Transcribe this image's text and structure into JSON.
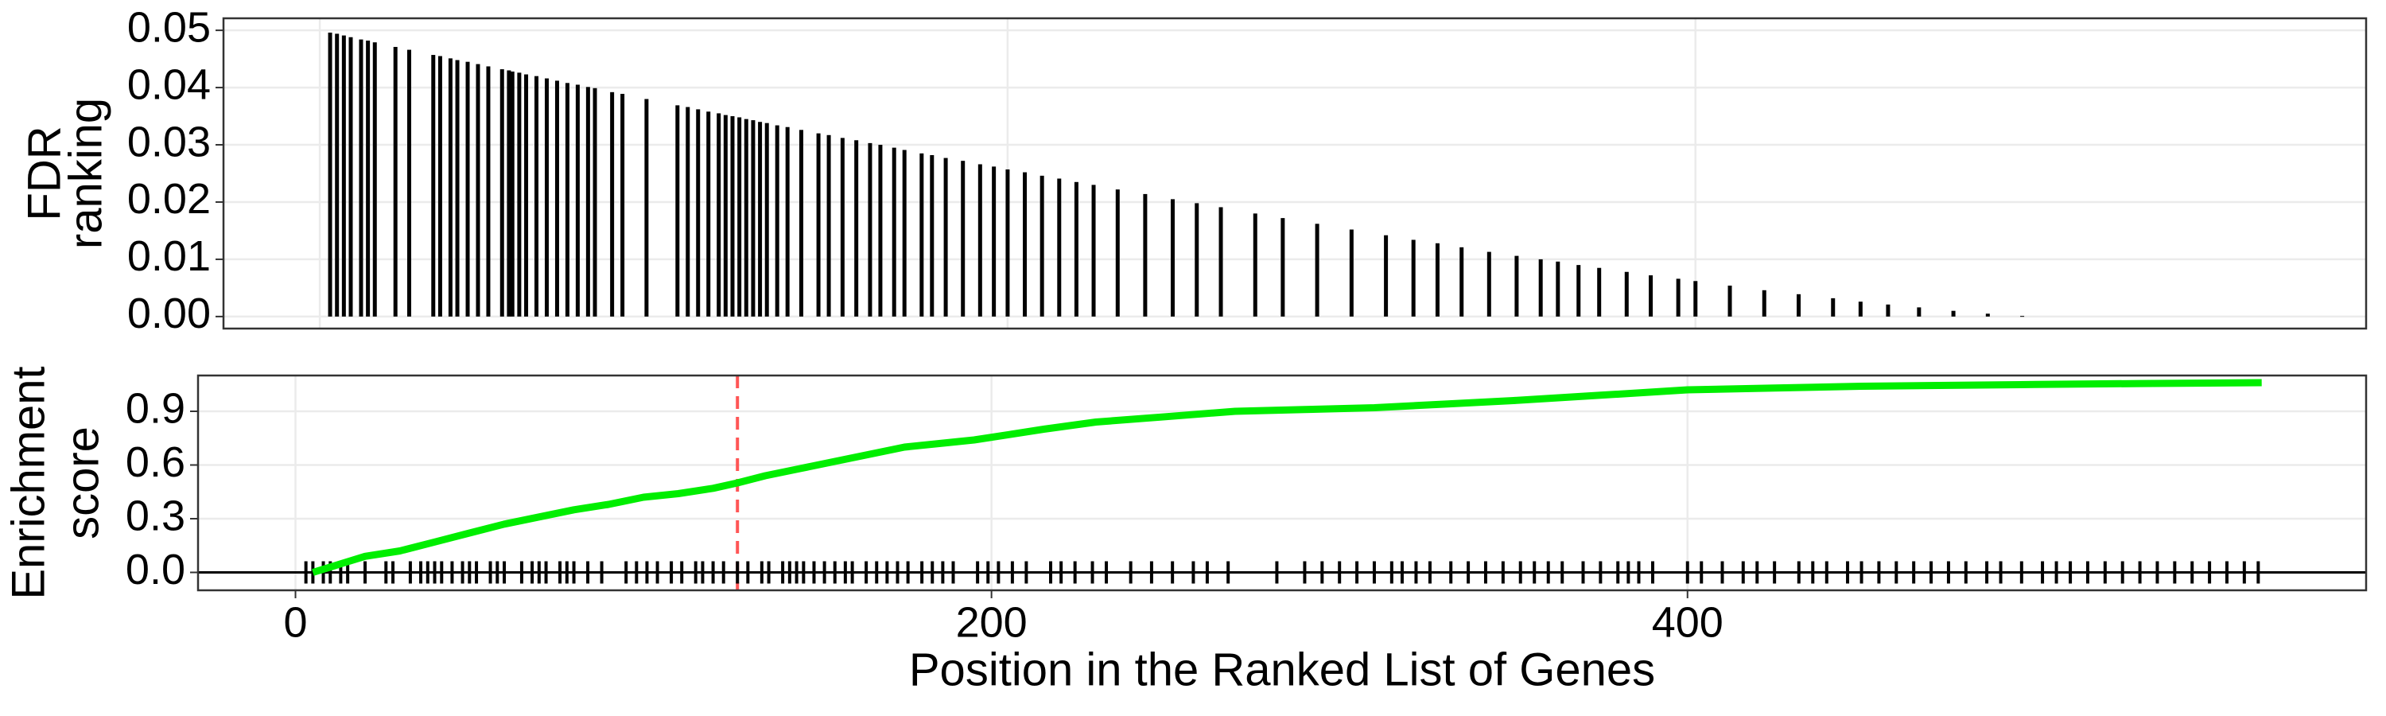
{
  "chart_data": [
    {
      "type": "bar",
      "ylabel": [
        "FDR",
        "ranking"
      ],
      "color": "#000000",
      "x": [
        3,
        5,
        7,
        9,
        12,
        14,
        16,
        22,
        26,
        33,
        35,
        38,
        40,
        43,
        46,
        49,
        53,
        55,
        56,
        58,
        60,
        63,
        66,
        69,
        72,
        75,
        78,
        80,
        85,
        88,
        95,
        104,
        107,
        110,
        113,
        116,
        118,
        120,
        122,
        124,
        126,
        128,
        130,
        133,
        136,
        140,
        145,
        148,
        152,
        156,
        160,
        163,
        167,
        170,
        175,
        178,
        182,
        187,
        192,
        196,
        200,
        205,
        210,
        215,
        220,
        225,
        232,
        240,
        248,
        255,
        262,
        272,
        280,
        290,
        300,
        310,
        318,
        325,
        332,
        340,
        348,
        355,
        360,
        366,
        372,
        380,
        387,
        395,
        400,
        410,
        420,
        430,
        440,
        448,
        456,
        465,
        475,
        485,
        495
      ],
      "values": [
        0.0496,
        0.0494,
        0.0491,
        0.0488,
        0.0484,
        0.0482,
        0.0479,
        0.0471,
        0.0466,
        0.0457,
        0.0455,
        0.0451,
        0.0448,
        0.0445,
        0.0441,
        0.0437,
        0.0432,
        0.043,
        0.0428,
        0.0426,
        0.0423,
        0.042,
        0.0416,
        0.0412,
        0.0408,
        0.0405,
        0.0401,
        0.0399,
        0.0392,
        0.0389,
        0.038,
        0.0369,
        0.0366,
        0.0362,
        0.0358,
        0.0355,
        0.0352,
        0.035,
        0.0348,
        0.0345,
        0.0343,
        0.034,
        0.0338,
        0.0334,
        0.0331,
        0.0326,
        0.032,
        0.0317,
        0.0312,
        0.0308,
        0.0303,
        0.03,
        0.0295,
        0.0291,
        0.0285,
        0.0282,
        0.0277,
        0.0272,
        0.0266,
        0.0262,
        0.0257,
        0.0252,
        0.0246,
        0.0241,
        0.0235,
        0.023,
        0.0222,
        0.0214,
        0.0205,
        0.0198,
        0.0191,
        0.018,
        0.0172,
        0.0162,
        0.0152,
        0.0142,
        0.0134,
        0.0128,
        0.0121,
        0.0113,
        0.0106,
        0.01,
        0.0096,
        0.009,
        0.0085,
        0.0078,
        0.0072,
        0.0066,
        0.0062,
        0.0054,
        0.0046,
        0.0039,
        0.0032,
        0.0026,
        0.0021,
        0.0016,
        0.001,
        0.0005,
        0.0001
      ],
      "xlim": [
        -28,
        595
      ],
      "xticks": [
        0,
        200,
        400
      ],
      "xtick_labels": false,
      "ylim": [
        -0.0021,
        0.0521
      ],
      "yticks": [
        {
          "value": 0,
          "label": "0.00"
        },
        {
          "value": 0.01,
          "label": "0.01"
        },
        {
          "value": 0.02,
          "label": "0.02"
        },
        {
          "value": 0.03,
          "label": "0.03"
        },
        {
          "value": 0.04,
          "label": "0.04"
        },
        {
          "value": 0.05,
          "label": "0.05"
        }
      ],
      "grid": true
    },
    {
      "type": "line",
      "ylabel": [
        "Enrichment",
        "score"
      ],
      "xlabel": "Position in the Ranked List of Genes",
      "color": "#00ee00",
      "x": [
        5,
        10,
        15,
        20,
        30,
        40,
        50,
        60,
        70,
        80,
        90,
        100,
        110,
        120,
        127,
        135,
        145,
        155,
        165,
        175,
        185,
        195,
        205,
        215,
        230,
        250,
        270,
        290,
        310,
        330,
        350,
        375,
        400,
        425,
        450,
        475,
        500,
        530,
        565
      ],
      "values": [
        0,
        0.03,
        0.06,
        0.09,
        0.12,
        0.17,
        0.22,
        0.27,
        0.31,
        0.35,
        0.38,
        0.42,
        0.44,
        0.47,
        0.5,
        0.54,
        0.58,
        0.62,
        0.66,
        0.7,
        0.72,
        0.74,
        0.77,
        0.8,
        0.84,
        0.87,
        0.9,
        0.91,
        0.92,
        0.94,
        0.96,
        0.99,
        1.02,
        1.03,
        1.04,
        1.045,
        1.05,
        1.055,
        1.06
      ],
      "rug": [
        3,
        5,
        8,
        10,
        13,
        15,
        20,
        26,
        28,
        33,
        36,
        38,
        40,
        42,
        45,
        48,
        50,
        52,
        56,
        58,
        60,
        65,
        68,
        70,
        72,
        76,
        78,
        80,
        84,
        88,
        95,
        98,
        101,
        104,
        108,
        111,
        115,
        117,
        120,
        123,
        127,
        130,
        134,
        136,
        140,
        142,
        144,
        146,
        149,
        152,
        155,
        158,
        160,
        164,
        167,
        170,
        173,
        176,
        180,
        183,
        186,
        189,
        196,
        199,
        202,
        206,
        210,
        217,
        220,
        224,
        229,
        233,
        240,
        246,
        252,
        258,
        262,
        268,
        282,
        290,
        295,
        300,
        305,
        310,
        315,
        318,
        322,
        326,
        332,
        337,
        342,
        347,
        352,
        356,
        360,
        364,
        370,
        375,
        380,
        383,
        386,
        390,
        400,
        404,
        410,
        416,
        420,
        425,
        432,
        436,
        440,
        446,
        450,
        455,
        460,
        465,
        470,
        475,
        480,
        486,
        490,
        496,
        502,
        506,
        510,
        515,
        520,
        525,
        530,
        535,
        540,
        545,
        550,
        555,
        560,
        564
      ],
      "rug_color": "#000000",
      "hline": 0,
      "vline": {
        "x": 127,
        "color": "#ff5555"
      },
      "xlim": [
        -28,
        595
      ],
      "xticks": [
        0,
        200,
        400
      ],
      "xtick_labels": true,
      "ylim": [
        -0.1,
        1.1
      ],
      "yticks": [
        {
          "value": 0,
          "label": "0.0"
        },
        0.3,
        0.6,
        0.9
      ],
      "grid": true
    }
  ]
}
